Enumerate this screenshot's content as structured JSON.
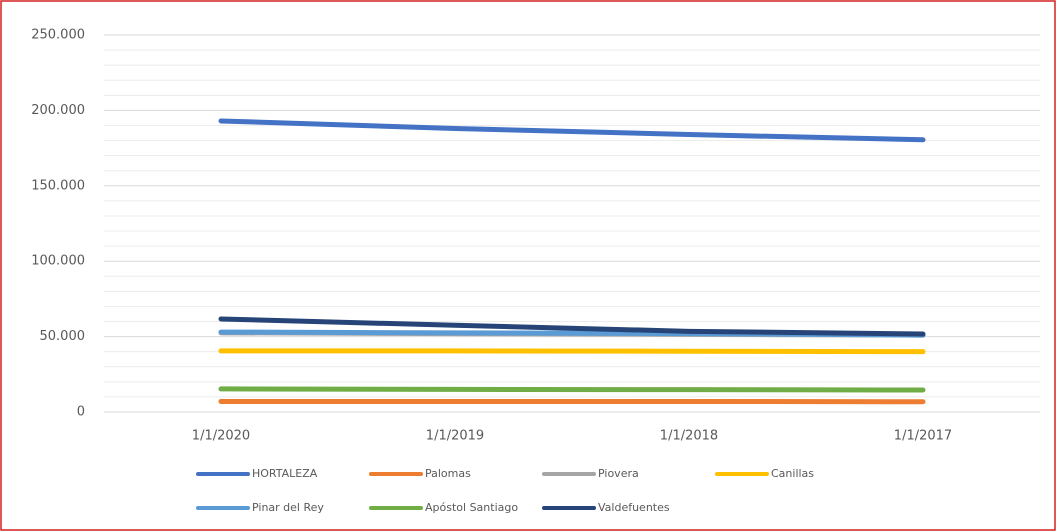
{
  "chart_data": {
    "type": "line",
    "categories": [
      "1/1/2020",
      "1/1/2019",
      "1/1/2018",
      "1/1/2017"
    ],
    "series": [
      {
        "name": "HORTALEZA",
        "color": "#4472c4",
        "values": [
          193000,
          188000,
          184000,
          180500
        ]
      },
      {
        "name": "Palomas",
        "color": "#ed7d31",
        "values": [
          7000,
          7000,
          7000,
          6800
        ]
      },
      {
        "name": "Piovera",
        "color": "#a5a5a5",
        "values": [
          52500,
          52000,
          51500,
          51000
        ]
      },
      {
        "name": "Canillas",
        "color": "#ffc000",
        "values": [
          40500,
          40500,
          40300,
          40000
        ]
      },
      {
        "name": "Pinar del Rey",
        "color": "#5b9bd5",
        "values": [
          53000,
          52500,
          52000,
          51000
        ]
      },
      {
        "name": "Apóstol Santiago",
        "color": "#70ad47",
        "values": [
          15300,
          15000,
          14800,
          14600
        ]
      },
      {
        "name": "Valdefuentes",
        "color": "#264478",
        "values": [
          61700,
          57500,
          53500,
          51700
        ]
      }
    ],
    "ylim": [
      0,
      250000
    ],
    "yticks": [
      0,
      {
        "value": 50000,
        "label": "50.000"
      },
      {
        "value": 100000,
        "label": "100.000"
      },
      {
        "value": 150000,
        "label": "150.000"
      },
      {
        "value": 200000,
        "label": "200.000"
      },
      {
        "value": 250000,
        "label": "250.000"
      }
    ],
    "minor_yticks": [
      10000,
      20000,
      30000,
      40000,
      60000,
      70000,
      80000,
      90000,
      110000,
      120000,
      130000,
      140000,
      160000,
      170000,
      180000,
      190000,
      210000,
      220000,
      230000,
      240000
    ],
    "grid": true,
    "legend": "bottom"
  }
}
